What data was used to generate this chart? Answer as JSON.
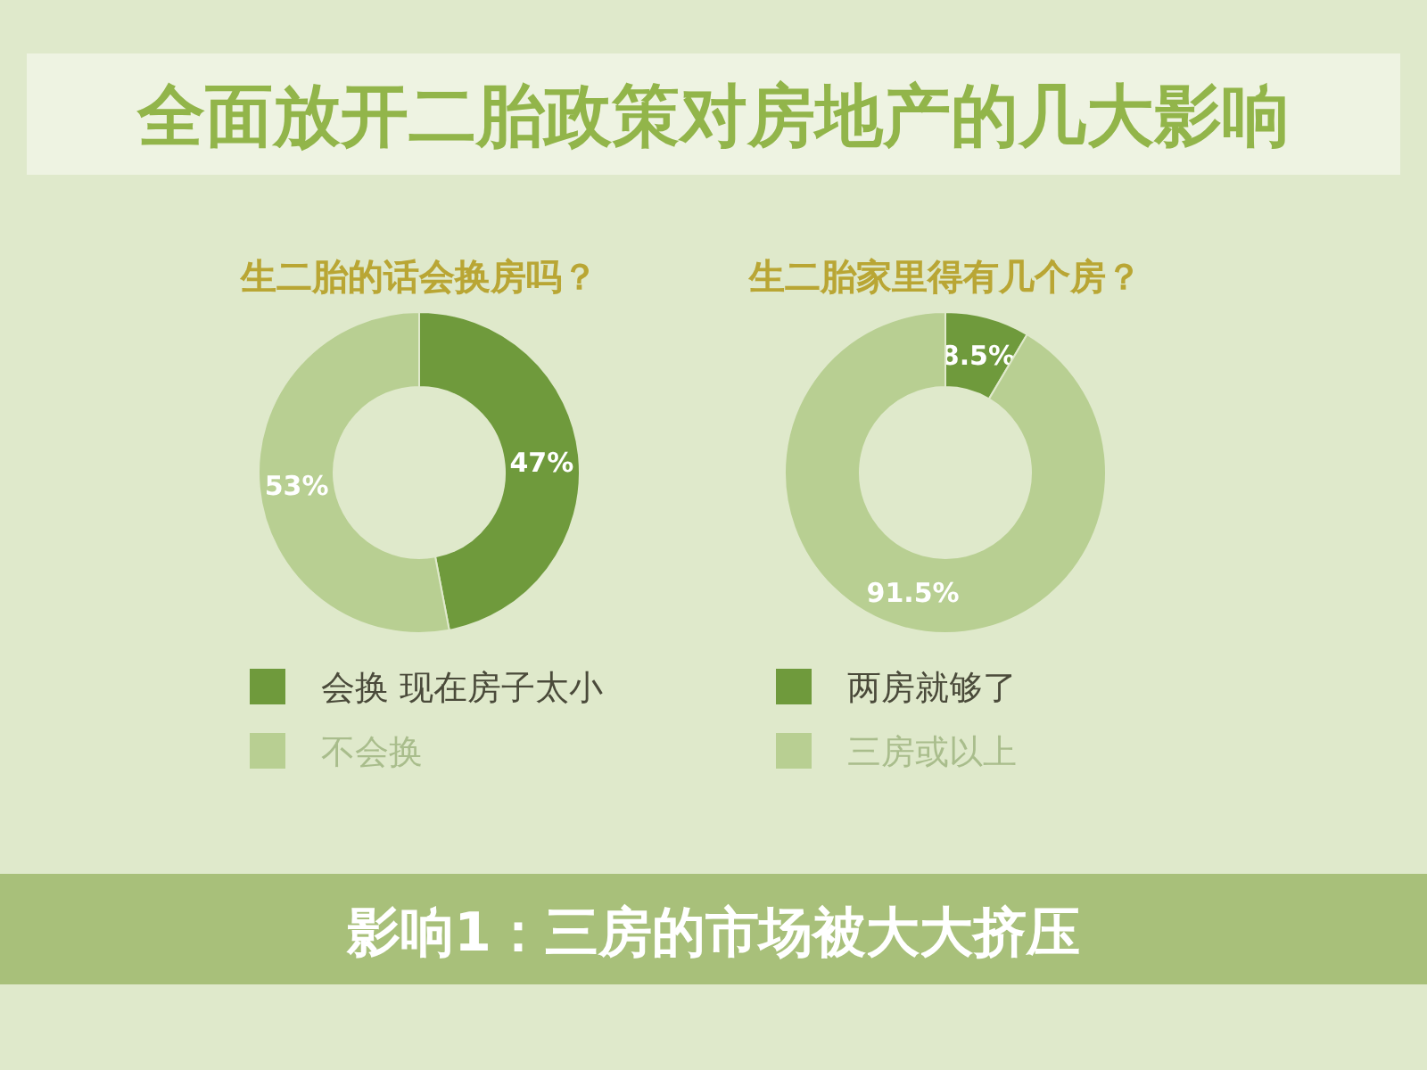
{
  "chart_data": [
    {
      "type": "other",
      "title": "全面放开二胎政策对房地产的几大影响"
    },
    {
      "type": "donut",
      "title": "生二胎的话会换房吗？",
      "categories": [
        "会换 现在房子太小",
        "不会换"
      ],
      "values": [
        47,
        53
      ],
      "value_labels": [
        "47%",
        "53%"
      ],
      "colors": [
        "#6f9a3c",
        "#b8cf92"
      ],
      "legend": "bottom"
    },
    {
      "type": "donut",
      "title": "生二胎家里得有几个房？",
      "categories": [
        "两房就够了",
        "三房或以上"
      ],
      "values": [
        8.5,
        91.5
      ],
      "value_labels": [
        "8.5%",
        "91.5%"
      ],
      "colors": [
        "#6f9a3c",
        "#b8cf92"
      ],
      "legend": "bottom"
    },
    {
      "type": "other",
      "title": "影响1：三房的市场被大大挤压"
    }
  ]
}
